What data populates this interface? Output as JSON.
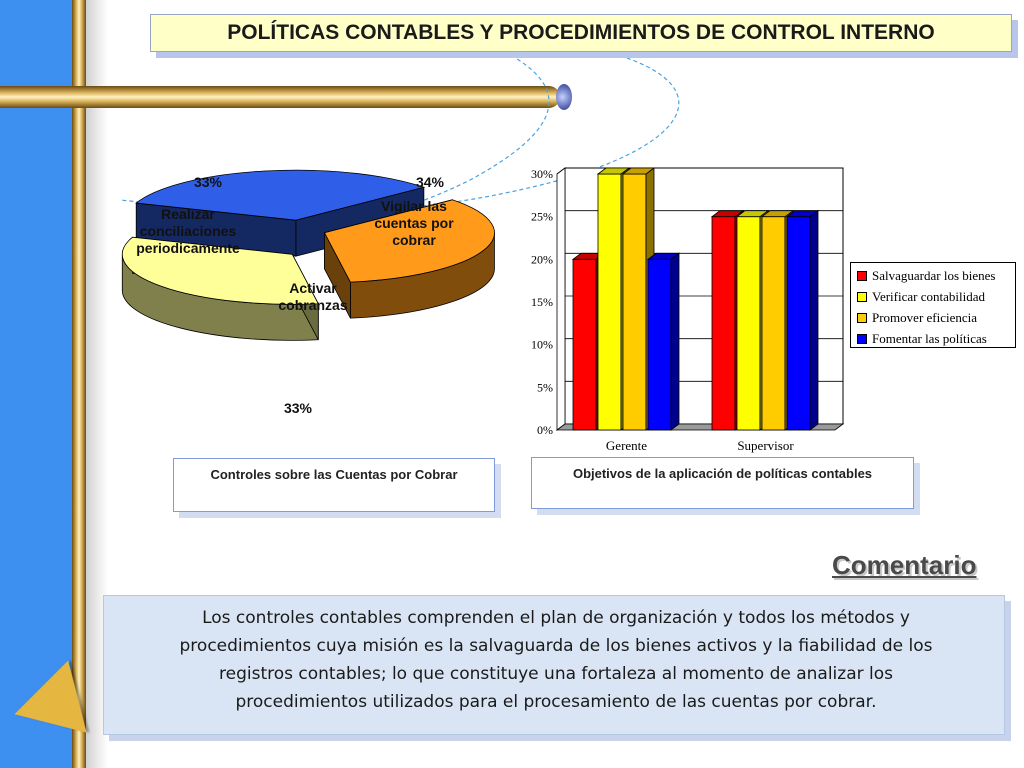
{
  "slide": {
    "title": "POLÍTICAS CONTABLES Y PROCEDIMIENTOS DE CONTROL INTERNO",
    "comment_heading": "Comentario",
    "comment_lines": [
      "Los controles contables comprenden el plan de organización y todos los métodos y",
      "procedimientos cuya misión es la salvaguarda de los bienes activos y la fiabilidad de  los",
      "registros contables; lo que constituye una fortaleza al momento de analizar los",
      "procedimientos utilizados para el procesamiento de las cuentas por cobrar."
    ]
  },
  "chart_data": [
    {
      "type": "pie",
      "caption": "Controles sobre las Cuentas por Cobrar",
      "slices": [
        {
          "label": "Realizar conciliaciones periodicamente",
          "value": 33,
          "pct_label": "33%",
          "color": "#2f5fe8"
        },
        {
          "label": "Vigilar las cuentas por cobrar",
          "value": 34,
          "pct_label": "34%",
          "color": "#ff9a1a"
        },
        {
          "label": "Activar cobranzas",
          "value": 33,
          "pct_label": "33%",
          "color": "#ffff99"
        }
      ]
    },
    {
      "type": "bar",
      "caption": "Objetivos de la aplicación de políticas contables",
      "categories": [
        "Gerente",
        "Supervisor"
      ],
      "ylim": [
        0,
        30
      ],
      "yticks": [
        "0%",
        "5%",
        "10%",
        "15%",
        "20%",
        "25%",
        "30%"
      ],
      "series": [
        {
          "name": "Salvaguardar los bienes",
          "values": [
            20,
            25
          ],
          "color": "#ff0000"
        },
        {
          "name": "Verificar contabilidad",
          "values": [
            30,
            25
          ],
          "color": "#ffff00"
        },
        {
          "name": "Promover eficiencia",
          "values": [
            30,
            25
          ],
          "color": "#ffcc00"
        },
        {
          "name": "Fomentar las políticas",
          "values": [
            20,
            25
          ],
          "color": "#0000ff"
        }
      ]
    }
  ]
}
